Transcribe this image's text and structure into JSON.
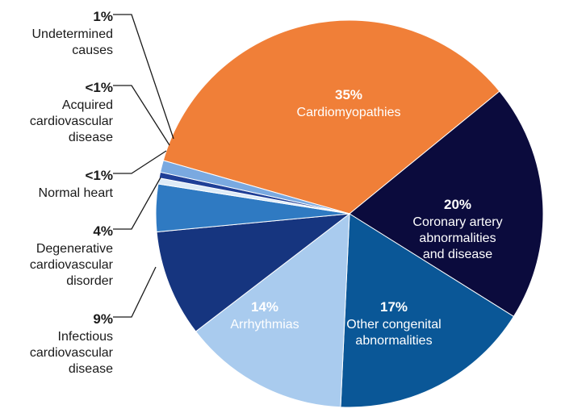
{
  "chart_data": {
    "type": "pie",
    "title": "",
    "slices": [
      {
        "label": [
          "Cardiomyopathies"
        ],
        "pct_label": "35%",
        "value": 35,
        "color": "#f07f38",
        "text_color": "#ffffff"
      },
      {
        "label": [
          "Coronary artery",
          "abnormalities",
          "and disease"
        ],
        "pct_label": "20%",
        "value": 20,
        "color": "#0b0b3d",
        "text_color": "#ffffff"
      },
      {
        "label": [
          "Other congenital",
          "abnormalities"
        ],
        "pct_label": "17%",
        "value": 17,
        "color": "#0a5797",
        "text_color": "#ffffff"
      },
      {
        "label": [
          "Arrhythmias"
        ],
        "pct_label": "14%",
        "value": 14,
        "color": "#a9cbee",
        "text_color": "#ffffff"
      },
      {
        "label": [
          "Infectious",
          "cardiovascular",
          "disease"
        ],
        "pct_label": "9%",
        "value": 9,
        "color": "#16357f",
        "text_color": "#1a1a1a"
      },
      {
        "label": [
          "Degenerative",
          "cardiovascular",
          "disorder"
        ],
        "pct_label": "4%",
        "value": 4,
        "color": "#2f7ac2",
        "text_color": "#1a1a1a"
      },
      {
        "label": [
          "Normal heart"
        ],
        "pct_label": "<1%",
        "value": 0.5,
        "color": "#deebf7",
        "text_color": "#1a1a1a"
      },
      {
        "label": [
          "Acquired",
          "cardiovascular",
          "disease"
        ],
        "pct_label": "<1%",
        "value": 0.5,
        "color": "#1f3f97",
        "text_color": "#1a1a1a"
      },
      {
        "label": [
          "Undetermined",
          "causes"
        ],
        "pct_label": "1%",
        "value": 1,
        "color": "#7aa9e0",
        "text_color": "#1a1a1a"
      }
    ]
  }
}
